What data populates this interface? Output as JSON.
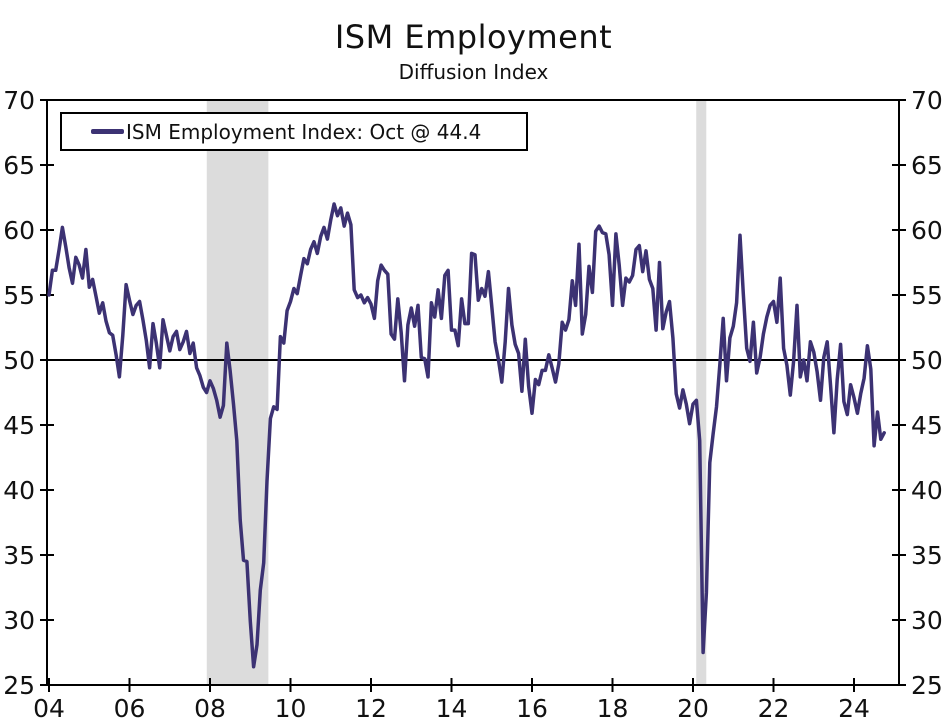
{
  "header": {
    "title": "ISM Employment",
    "subtitle": "Diffusion Index"
  },
  "legend": {
    "label": "ISM Employment Index: Oct @ 44.4"
  },
  "chart_data": {
    "type": "line",
    "title": "ISM Employment",
    "subtitle": "Diffusion Index",
    "ylabel": "",
    "xlabel": "",
    "ylim": [
      25,
      70
    ],
    "yticks": [
      25,
      30,
      35,
      40,
      45,
      50,
      55,
      60,
      65,
      70
    ],
    "xticks": [
      {
        "year": 2004,
        "label": "04"
      },
      {
        "year": 2006,
        "label": "06"
      },
      {
        "year": 2008,
        "label": "08"
      },
      {
        "year": 2010,
        "label": "10"
      },
      {
        "year": 2012,
        "label": "12"
      },
      {
        "year": 2014,
        "label": "14"
      },
      {
        "year": 2016,
        "label": "16"
      },
      {
        "year": 2018,
        "label": "18"
      },
      {
        "year": 2020,
        "label": "20"
      },
      {
        "year": 2022,
        "label": "22"
      },
      {
        "year": 2024,
        "label": "24"
      }
    ],
    "reference_line": 50,
    "grid": false,
    "legend_position": "top-left",
    "latest_point": {
      "month": "Oct",
      "year": 2024,
      "value": 44.4
    },
    "recession_bands": [
      {
        "start": 2007.92,
        "end": 2009.45
      },
      {
        "start": 2020.08,
        "end": 2020.33
      }
    ],
    "colors": {
      "line": "#3C3273",
      "recession_band": "#DCDCDC",
      "axis": "#000000",
      "background": "#FFFFFF"
    },
    "series": [
      {
        "name": "ISM Employment Index",
        "frequency": "monthly",
        "start_year": 2004,
        "start_month": 1,
        "values": [
          55.0,
          56.9,
          56.9,
          58.5,
          60.2,
          58.7,
          57.1,
          55.9,
          57.9,
          57.3,
          56.3,
          58.5,
          55.6,
          56.2,
          54.9,
          53.6,
          54.4,
          53.0,
          52.1,
          51.9,
          50.4,
          48.7,
          51.9,
          55.8,
          54.6,
          53.5,
          54.2,
          54.5,
          53.1,
          51.5,
          49.4,
          52.8,
          51.3,
          49.4,
          53.1,
          51.9,
          50.7,
          51.8,
          52.2,
          50.8,
          51.4,
          52.2,
          50.5,
          51.3,
          49.4,
          48.8,
          47.9,
          47.5,
          48.4,
          47.8,
          46.9,
          45.6,
          46.5,
          51.3,
          49.2,
          46.6,
          43.8,
          37.7,
          34.6,
          34.5,
          29.9,
          26.4,
          28.1,
          32.3,
          34.4,
          40.7,
          45.5,
          46.4,
          46.2,
          51.8,
          51.3,
          53.8,
          54.5,
          55.5,
          55.1,
          56.5,
          57.8,
          57.4,
          58.5,
          59.1,
          58.2,
          59.5,
          60.2,
          59.3,
          60.8,
          62.0,
          61.1,
          61.7,
          60.3,
          61.3,
          60.4,
          55.4,
          54.8,
          55.0,
          54.4,
          54.8,
          54.3,
          53.2,
          56.1,
          57.3,
          56.9,
          56.6,
          52.0,
          51.6,
          54.7,
          52.1,
          48.4,
          52.7,
          54.0,
          52.6,
          54.2,
          50.2,
          50.1,
          48.7,
          54.4,
          53.3,
          55.4,
          53.2,
          56.5,
          56.9,
          52.3,
          52.3,
          51.1,
          54.7,
          52.8,
          52.8,
          58.2,
          58.1,
          54.6,
          55.5,
          54.9,
          56.8,
          54.1,
          51.4,
          50.0,
          48.3,
          51.4,
          55.5,
          52.7,
          51.2,
          50.5,
          47.6,
          51.6,
          48.0,
          45.9,
          48.5,
          48.1,
          49.2,
          49.2,
          50.4,
          49.4,
          48.3,
          49.7,
          52.9,
          52.3,
          53.1,
          56.1,
          54.2,
          58.9,
          52.0,
          53.5,
          57.2,
          55.2,
          59.9,
          60.3,
          59.8,
          59.7,
          58.1,
          54.2,
          59.7,
          57.3,
          54.2,
          56.3,
          56.0,
          56.5,
          58.5,
          58.8,
          56.8,
          58.4,
          56.2,
          55.5,
          52.3,
          57.5,
          52.4,
          53.7,
          54.5,
          51.7,
          47.4,
          46.3,
          47.7,
          46.6,
          45.1,
          46.6,
          46.9,
          43.8,
          27.5,
          32.1,
          42.1,
          44.3,
          46.4,
          49.6,
          53.2,
          48.4,
          51.7,
          52.6,
          54.4,
          59.6,
          55.1,
          50.9,
          49.9,
          52.9,
          49.0,
          50.2,
          52.0,
          53.3,
          54.2,
          54.5,
          52.9,
          56.3,
          50.9,
          49.6,
          47.3,
          49.9,
          54.2,
          48.7,
          50.0,
          48.4,
          51.4,
          50.6,
          49.1,
          46.9,
          50.2,
          51.4,
          48.1,
          44.4,
          48.5,
          51.2,
          46.8,
          45.8,
          48.1,
          47.1,
          45.9,
          47.4,
          48.6,
          51.1,
          49.3,
          43.4,
          46.0,
          43.9,
          44.4
        ]
      }
    ]
  }
}
